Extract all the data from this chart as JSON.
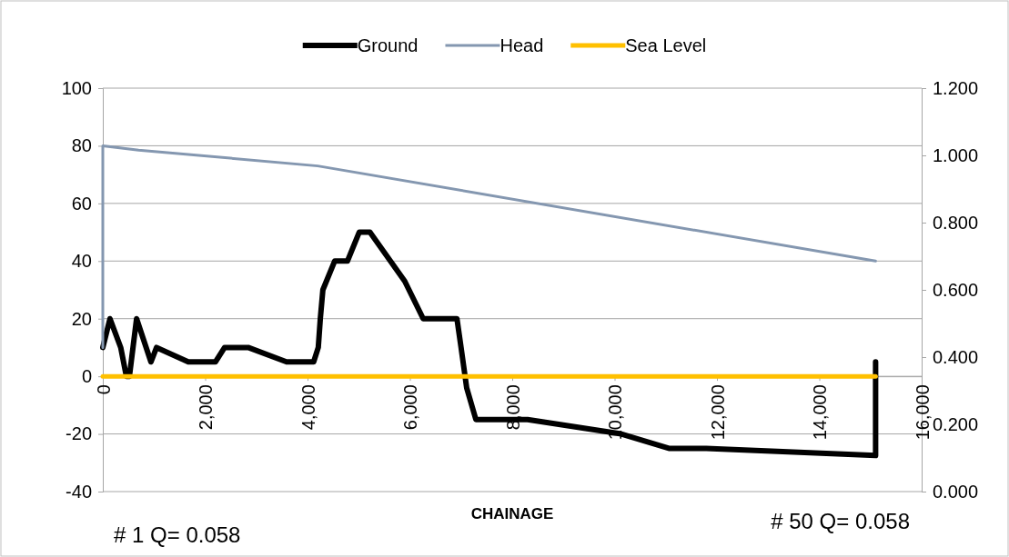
{
  "chart_data": {
    "type": "line",
    "xlabel": "CHAINAGE",
    "legend": "top",
    "grid": "y",
    "marker": "none",
    "line_style": "solid",
    "xlim": [
      0,
      16000
    ],
    "xticks": [
      0,
      {
        "value": 2000,
        "label": "2,000"
      },
      {
        "value": 4000,
        "label": "4,000"
      },
      {
        "value": 6000,
        "label": "6,000"
      },
      {
        "value": 8000,
        "label": "8,000"
      },
      {
        "value": 10000,
        "label": "10,000"
      },
      {
        "value": 12000,
        "label": "12,000"
      },
      {
        "value": 14000,
        "label": "14,000"
      },
      {
        "value": 16000,
        "label": "16,000"
      }
    ],
    "ylim": [
      -40,
      100
    ],
    "yticks": [
      -40,
      -20,
      0,
      20,
      40,
      60,
      80,
      100
    ],
    "y2lim": [
      0,
      1.2
    ],
    "y2ticks": [
      {
        "value": 0,
        "label": "0.000"
      },
      {
        "value": 0.2,
        "label": "0.200"
      },
      {
        "value": 0.4,
        "label": "0.400"
      },
      {
        "value": 0.6,
        "label": "0.600"
      },
      {
        "value": 0.8,
        "label": "0.800"
      },
      {
        "value": 1,
        "label": "1.000"
      },
      {
        "value": 1.2,
        "label": "1.200"
      }
    ],
    "series": [
      {
        "name": "Ground",
        "color": "#000000",
        "x": [
          0,
          140,
          350,
          460,
          520,
          660,
          940,
          1050,
          1670,
          2200,
          2380,
          2840,
          3590,
          4120,
          4210,
          4250,
          4300,
          4530,
          4780,
          5010,
          5220,
          5900,
          6260,
          6920,
          7000,
          7110,
          7290,
          8300,
          10130,
          11060,
          11790,
          15100,
          15100
        ],
        "values": [
          10,
          20,
          10,
          0,
          0,
          20,
          5,
          10,
          5,
          5,
          10,
          10,
          5,
          5,
          10,
          20,
          30,
          40,
          40,
          50,
          50,
          33,
          20,
          20,
          10,
          -4,
          -15,
          -15,
          -20,
          -25,
          -25,
          -27.5,
          5
        ]
      },
      {
        "name": "Head",
        "color": "#8497b0",
        "x": [
          0,
          0,
          700,
          4200,
          15100
        ],
        "values": [
          10,
          80,
          78.5,
          73,
          40
        ]
      },
      {
        "name": "Sea Level",
        "color": "#ffc000",
        "x": [
          0,
          15100
        ],
        "values": [
          0,
          0
        ]
      }
    ],
    "annotations": [
      "# 1 Q= 0.058",
      "# 50 Q= 0.058"
    ]
  }
}
